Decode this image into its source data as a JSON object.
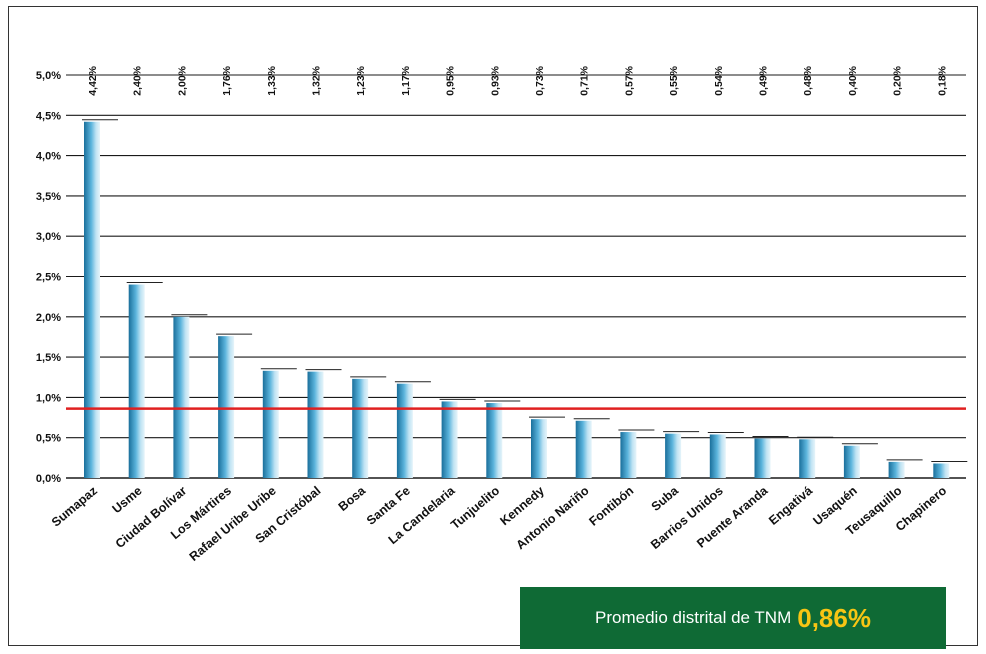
{
  "chart_data": {
    "type": "bar",
    "categories": [
      "Sumapaz",
      "Usme",
      "Ciudad Bolívar",
      "Los Mártires",
      "Rafael Uribe Uribe",
      "San Cristóbal",
      "Bosa",
      "Santa Fe",
      "La Candelaria",
      "Tunjuelito",
      "Kennedy",
      "Antonio Nariño",
      "Fontibón",
      "Suba",
      "Barrios Unidos",
      "Puente Aranda",
      "Engativá",
      "Usaquén",
      "Teusaquillo",
      "Chapinero"
    ],
    "values": [
      4.42,
      2.4,
      2.0,
      1.76,
      1.33,
      1.32,
      1.23,
      1.17,
      0.95,
      0.93,
      0.73,
      0.71,
      0.57,
      0.55,
      0.54,
      0.49,
      0.48,
      0.4,
      0.2,
      0.18
    ],
    "value_labels": [
      "4,42%",
      "2,40%",
      "2,00%",
      "1,76%",
      "1,33%",
      "1,32%",
      "1,23%",
      "1,17%",
      "0,95%",
      "0,93%",
      "0,73%",
      "0,71%",
      "0,57%",
      "0,55%",
      "0,54%",
      "0,49%",
      "0,48%",
      "0,40%",
      "0,20%",
      "0,18%"
    ],
    "ylim": [
      0,
      5
    ],
    "y_ticks": [
      "0,0%",
      "0,5%",
      "1,0%",
      "1,5%",
      "2,0%",
      "2,5%",
      "3,0%",
      "3,5%",
      "4,0%",
      "4,5%",
      "5,0%"
    ],
    "grid": true,
    "reference_line": {
      "value": 0.86,
      "color": "#e02020"
    },
    "bar_color": "#4ba3cf",
    "title": "",
    "xlabel": "",
    "ylabel": ""
  },
  "annotation": {
    "text": "Promedio distrital de TNM",
    "value": "0,86%",
    "box_color": "#0f6a35",
    "value_color": "#f7c514"
  }
}
